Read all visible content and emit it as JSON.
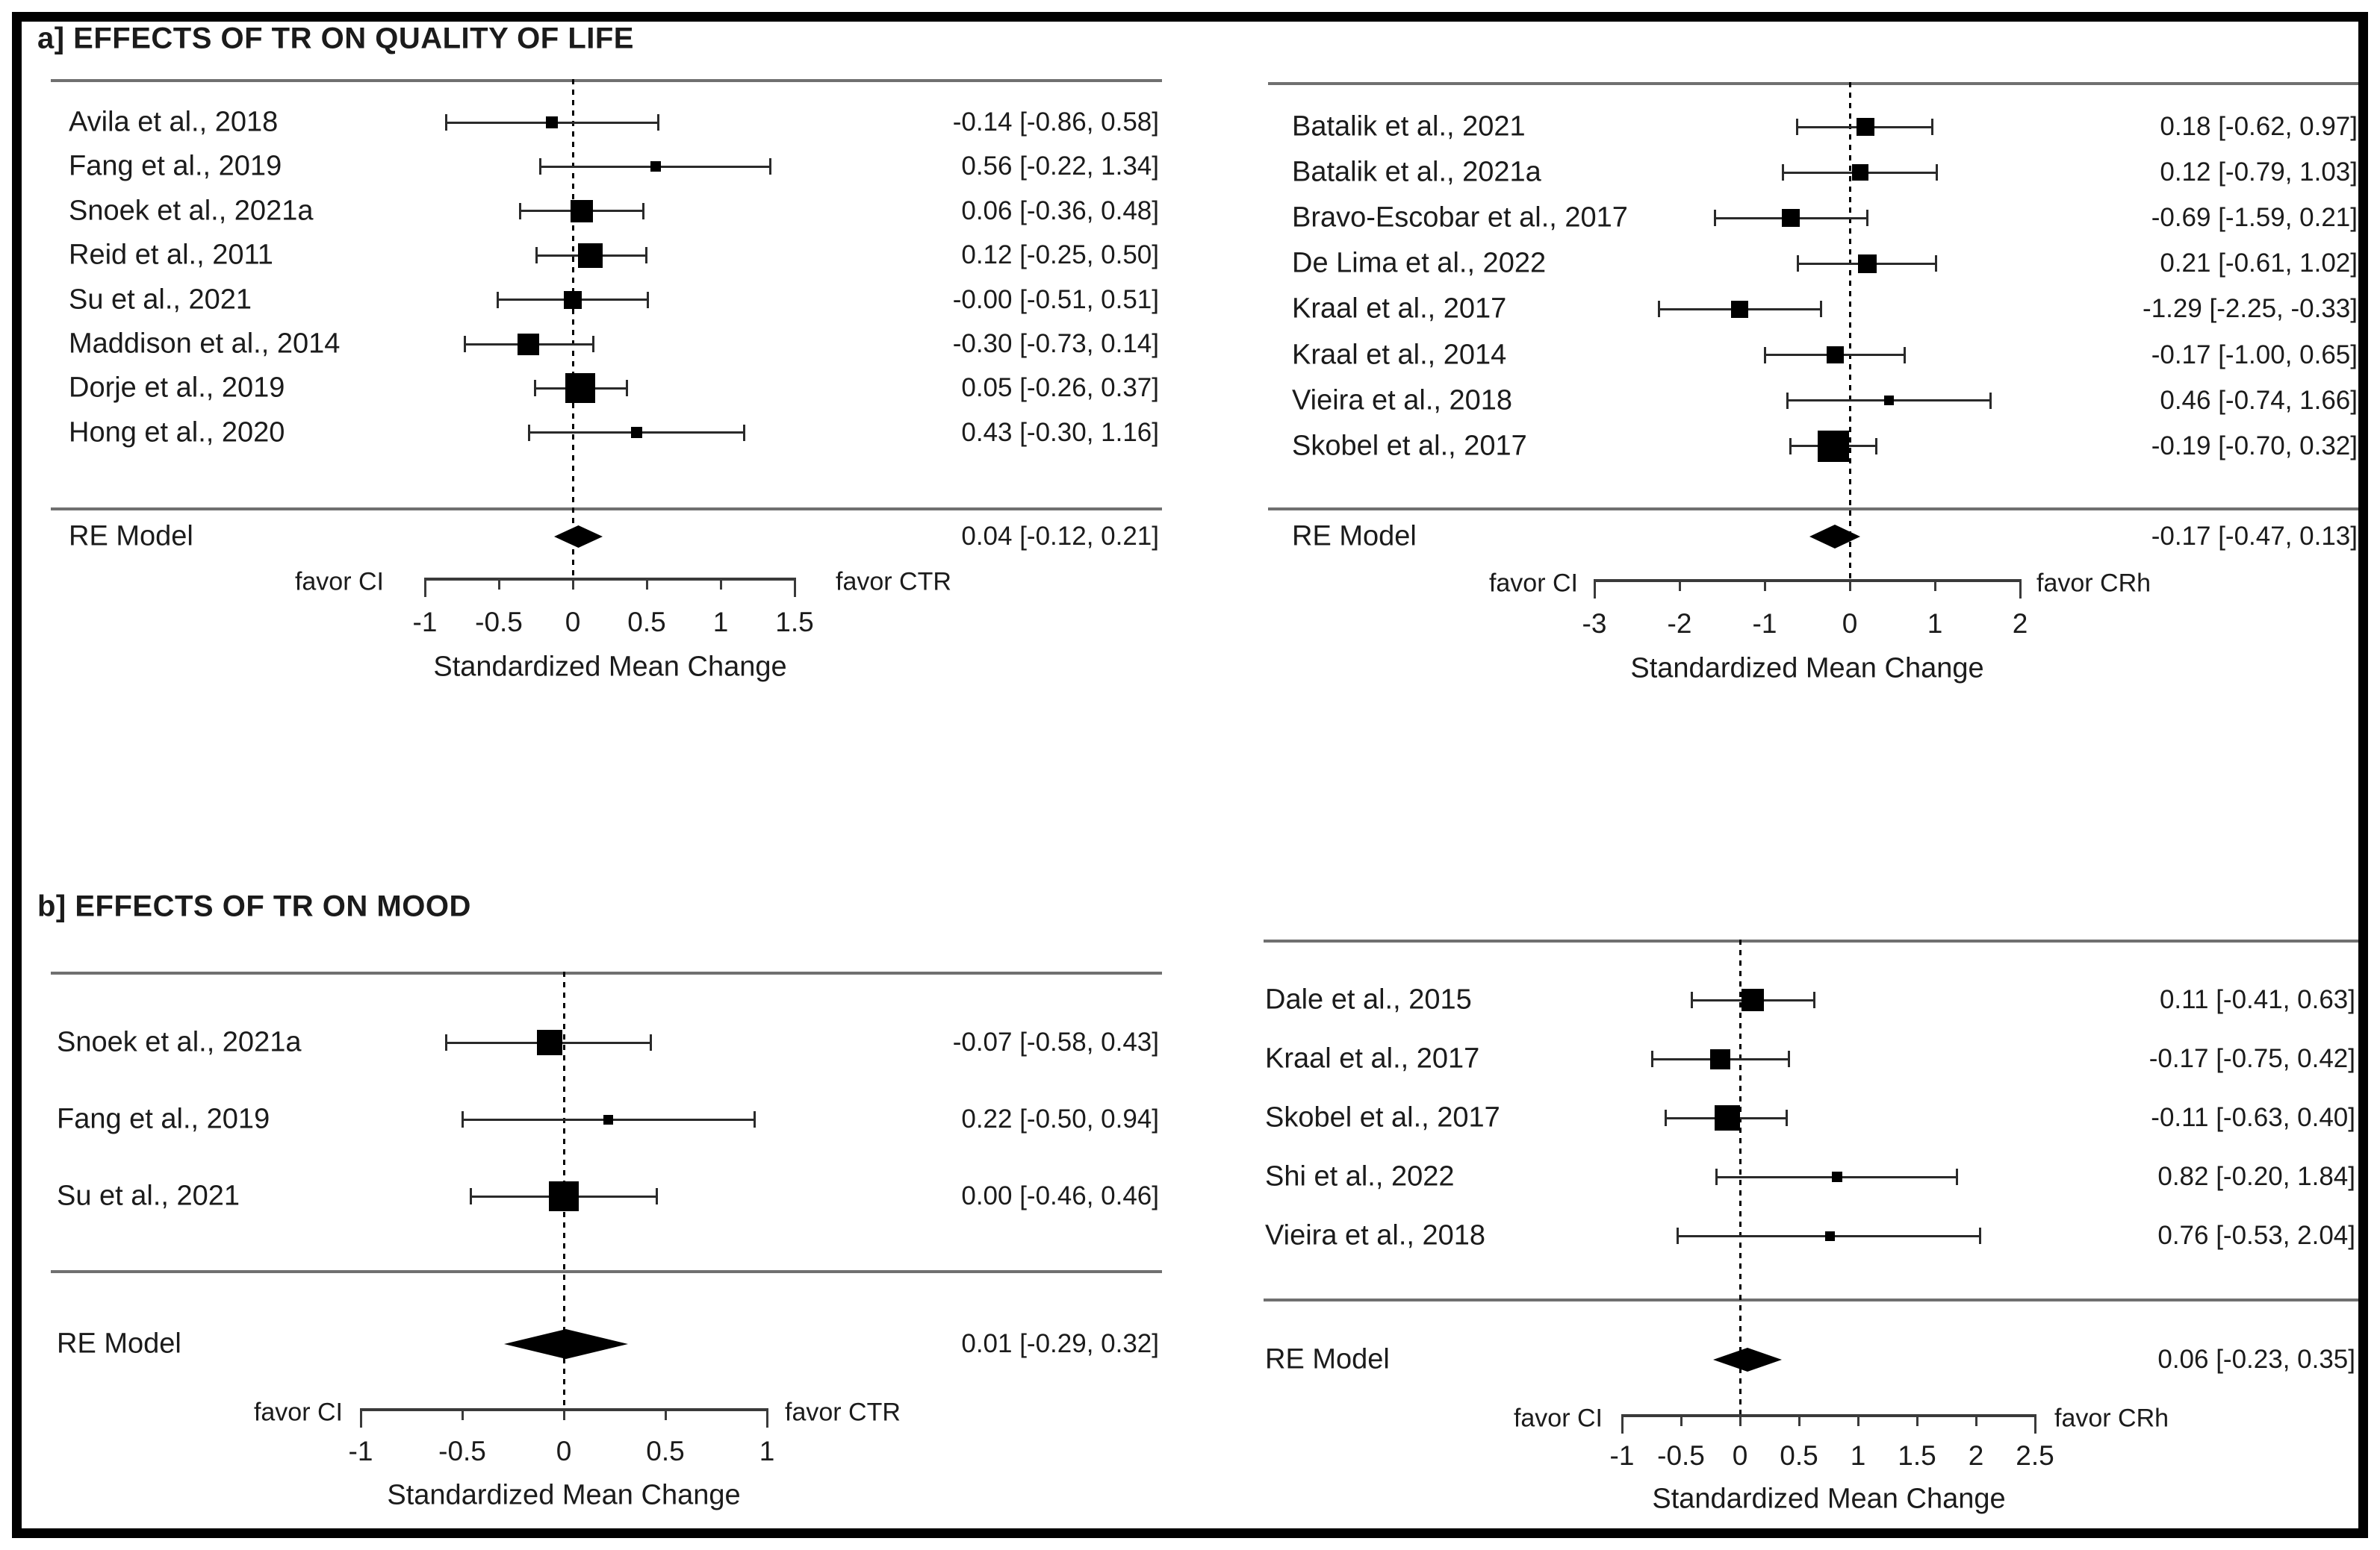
{
  "figure": {
    "section_a_title": "a] EFFECTS OF TR ON QUALITY OF LIFE",
    "section_b_title": "b] EFFECTS OF TR ON MOOD"
  },
  "chart_data": [
    {
      "id": "a_left",
      "type": "forest",
      "section_title": "a] EFFECTS OF TR ON QUALITY OF LIFE",
      "studies": [
        {
          "label": "Avila et al., 2018",
          "estimate": -0.14,
          "ci_lower": -0.86,
          "ci_upper": 0.58,
          "annotation": "-0.14 [-0.86, 0.58]",
          "marker_size": 16
        },
        {
          "label": "Fang et al., 2019",
          "estimate": 0.56,
          "ci_lower": -0.22,
          "ci_upper": 1.34,
          "annotation": "0.56 [-0.22, 1.34]",
          "marker_size": 14
        },
        {
          "label": "Snoek et al., 2021a",
          "estimate": 0.06,
          "ci_lower": -0.36,
          "ci_upper": 0.48,
          "annotation": "0.06 [-0.36, 0.48]",
          "marker_size": 30
        },
        {
          "label": "Reid et al., 2011",
          "estimate": 0.12,
          "ci_lower": -0.25,
          "ci_upper": 0.5,
          "annotation": "0.12 [-0.25, 0.50]",
          "marker_size": 33
        },
        {
          "label": "Su et al., 2021",
          "estimate": -0.0,
          "ci_lower": -0.51,
          "ci_upper": 0.51,
          "annotation": "-0.00 [-0.51, 0.51]",
          "marker_size": 24
        },
        {
          "label": "Maddison et al., 2014",
          "estimate": -0.3,
          "ci_lower": -0.73,
          "ci_upper": 0.14,
          "annotation": "-0.30 [-0.73, 0.14]",
          "marker_size": 29
        },
        {
          "label": "Dorje et al., 2019",
          "estimate": 0.05,
          "ci_lower": -0.26,
          "ci_upper": 0.37,
          "annotation": "0.05 [-0.26, 0.37]",
          "marker_size": 40
        },
        {
          "label": "Hong et al., 2020",
          "estimate": 0.43,
          "ci_lower": -0.3,
          "ci_upper": 1.16,
          "annotation": "0.43 [-0.30, 1.16]",
          "marker_size": 15
        }
      ],
      "summary": {
        "label": "RE Model",
        "estimate": 0.04,
        "ci_lower": -0.12,
        "ci_upper": 0.21,
        "annotation": "0.04 [-0.12, 0.21]"
      },
      "axis": {
        "ticks": [
          -1,
          -0.5,
          0,
          0.5,
          1,
          1.5
        ],
        "tick_labels": [
          "-1",
          "-0.5",
          "0",
          "0.5",
          "1",
          "1.5"
        ],
        "favor_left": "favor CI",
        "favor_right": "favor CTR",
        "xlabel": "Standardized Mean Change"
      }
    },
    {
      "id": "a_right",
      "type": "forest",
      "section_title": "a] EFFECTS OF TR ON QUALITY OF LIFE",
      "studies": [
        {
          "label": "Batalik et al., 2021",
          "estimate": 0.18,
          "ci_lower": -0.62,
          "ci_upper": 0.97,
          "annotation": "0.18 [-0.62, 0.97]",
          "marker_size": 24
        },
        {
          "label": "Batalik et al., 2021a",
          "estimate": 0.12,
          "ci_lower": -0.79,
          "ci_upper": 1.03,
          "annotation": "0.12 [-0.79, 1.03]",
          "marker_size": 22
        },
        {
          "label": "Bravo-Escobar et al., 2017",
          "estimate": -0.69,
          "ci_lower": -1.59,
          "ci_upper": 0.21,
          "annotation": "-0.69 [-1.59, 0.21]",
          "marker_size": 24
        },
        {
          "label": "De Lima et al., 2022",
          "estimate": 0.21,
          "ci_lower": -0.61,
          "ci_upper": 1.02,
          "annotation": "0.21 [-0.61, 1.02]",
          "marker_size": 25
        },
        {
          "label": "Kraal et al., 2017",
          "estimate": -1.29,
          "ci_lower": -2.25,
          "ci_upper": -0.33,
          "annotation": "-1.29 [-2.25, -0.33]",
          "marker_size": 23
        },
        {
          "label": "Kraal et al., 2014",
          "estimate": -0.17,
          "ci_lower": -1.0,
          "ci_upper": 0.65,
          "annotation": "-0.17 [-1.00, 0.65]",
          "marker_size": 23
        },
        {
          "label": "Vieira et al., 2018",
          "estimate": 0.46,
          "ci_lower": -0.74,
          "ci_upper": 1.66,
          "annotation": "0.46 [-0.74, 1.66]",
          "marker_size": 13
        },
        {
          "label": "Skobel et al., 2017",
          "estimate": -0.19,
          "ci_lower": -0.7,
          "ci_upper": 0.32,
          "annotation": "-0.19 [-0.70, 0.32]",
          "marker_size": 42
        }
      ],
      "summary": {
        "label": "RE Model",
        "estimate": -0.17,
        "ci_lower": -0.47,
        "ci_upper": 0.13,
        "annotation": "-0.17 [-0.47, 0.13]"
      },
      "axis": {
        "ticks": [
          -3,
          -2,
          -1,
          0,
          1,
          2
        ],
        "tick_labels": [
          "-3",
          "-2",
          "-1",
          "0",
          "1",
          "2"
        ],
        "favor_left": "favor CI",
        "favor_right": "favor CRh",
        "xlabel": "Standardized Mean Change"
      }
    },
    {
      "id": "b_left",
      "type": "forest",
      "section_title": "b] EFFECTS OF TR ON MOOD",
      "studies": [
        {
          "label": "Snoek et al., 2021a",
          "estimate": -0.07,
          "ci_lower": -0.58,
          "ci_upper": 0.43,
          "annotation": "-0.07 [-0.58, 0.43]",
          "marker_size": 34
        },
        {
          "label": "Fang et al., 2019",
          "estimate": 0.22,
          "ci_lower": -0.5,
          "ci_upper": 0.94,
          "annotation": "0.22 [-0.50, 0.94]",
          "marker_size": 13
        },
        {
          "label": "Su et al., 2021",
          "estimate": 0.0,
          "ci_lower": -0.46,
          "ci_upper": 0.46,
          "annotation": "0.00 [-0.46, 0.46]",
          "marker_size": 40
        }
      ],
      "summary": {
        "label": "RE Model",
        "estimate": 0.01,
        "ci_lower": -0.29,
        "ci_upper": 0.32,
        "annotation": "0.01 [-0.29, 0.32]"
      },
      "axis": {
        "ticks": [
          -1,
          -0.5,
          0,
          0.5,
          1
        ],
        "tick_labels": [
          "-1",
          "-0.5",
          "0",
          "0.5",
          "1"
        ],
        "favor_left": "favor CI",
        "favor_right": "favor CTR",
        "xlabel": "Standardized Mean Change"
      }
    },
    {
      "id": "b_right",
      "type": "forest",
      "section_title": "b] EFFECTS OF TR ON MOOD",
      "studies": [
        {
          "label": "Dale et al., 2015",
          "estimate": 0.11,
          "ci_lower": -0.41,
          "ci_upper": 0.63,
          "annotation": "0.11 [-0.41, 0.63]",
          "marker_size": 30
        },
        {
          "label": "Kraal et al., 2017",
          "estimate": -0.17,
          "ci_lower": -0.75,
          "ci_upper": 0.42,
          "annotation": "-0.17 [-0.75, 0.42]",
          "marker_size": 27
        },
        {
          "label": "Skobel et al., 2017",
          "estimate": -0.11,
          "ci_lower": -0.63,
          "ci_upper": 0.4,
          "annotation": "-0.11 [-0.63, 0.40]",
          "marker_size": 34
        },
        {
          "label": "Shi et al., 2022",
          "estimate": 0.82,
          "ci_lower": -0.2,
          "ci_upper": 1.84,
          "annotation": "0.82 [-0.20, 1.84]",
          "marker_size": 14
        },
        {
          "label": "Vieira et al., 2018",
          "estimate": 0.76,
          "ci_lower": -0.53,
          "ci_upper": 2.04,
          "annotation": "0.76 [-0.53, 2.04]",
          "marker_size": 13
        }
      ],
      "summary": {
        "label": "RE Model",
        "estimate": 0.06,
        "ci_lower": -0.23,
        "ci_upper": 0.35,
        "annotation": "0.06 [-0.23, 0.35]"
      },
      "axis": {
        "ticks": [
          -1,
          -0.5,
          0,
          0.5,
          1,
          1.5,
          2,
          2.5
        ],
        "tick_labels": [
          "-1",
          "-0.5",
          "0",
          "0.5",
          "1",
          "1.5",
          "2",
          "2.5"
        ],
        "favor_left": "favor CI",
        "favor_right": "favor CRh",
        "xlabel": "Standardized Mean Change"
      }
    }
  ]
}
